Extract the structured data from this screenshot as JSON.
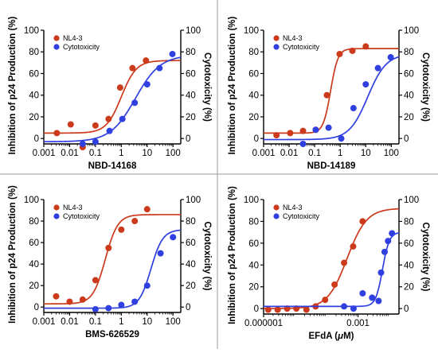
{
  "colors": {
    "nl43": "#cc3a1c",
    "cyto": "#2f3fe0",
    "divider": "#9a9a9a",
    "axis": "#000000"
  },
  "chart_data": [
    {
      "type": "scatter",
      "panel": "top-left",
      "xlabel": "NBD-14168",
      "ylabel_left": "Inhibition of p24 Production (%)",
      "ylabel_right": "Cytotoxicity (%)",
      "xscale": "log",
      "xlim": [
        0.001,
        200
      ],
      "xticks": [
        "0.001",
        "0.01",
        "0.1",
        "1",
        "10",
        "100"
      ],
      "ylim_left": [
        -5,
        100
      ],
      "ylim_right": [
        -5,
        100
      ],
      "yticks": [
        "0",
        "20",
        "40",
        "60",
        "80",
        "100"
      ],
      "legend_position": "top-left",
      "series": [
        {
          "name": "NL4-3",
          "color_key": "nl43",
          "points": [
            [
              0.0032,
              5
            ],
            [
              0.011,
              13
            ],
            [
              0.032,
              -8
            ],
            [
              0.1,
              12
            ],
            [
              0.32,
              18
            ],
            [
              0.9,
              47
            ],
            [
              2.7,
              65
            ],
            [
              9,
              72
            ]
          ],
          "fit": {
            "bottom": 5,
            "top": 72,
            "ec50": 1.0,
            "hill": 1.5
          }
        },
        {
          "name": "Cytotoxicity",
          "color_key": "cyto",
          "points": [
            [
              0.032,
              -5
            ],
            [
              0.1,
              -3
            ],
            [
              0.35,
              7
            ],
            [
              1.1,
              18
            ],
            [
              3.3,
              33
            ],
            [
              10,
              50
            ],
            [
              30,
              65
            ],
            [
              95,
              78
            ]
          ],
          "fit": {
            "bottom": -3,
            "top": 77,
            "ec50": 3.5,
            "hill": 0.9
          }
        }
      ]
    },
    {
      "type": "scatter",
      "panel": "top-right",
      "xlabel": "NBD-14189",
      "ylabel_left": "Inhibition of p24 Production (%)",
      "ylabel_right": "Cytotoxicity (%)",
      "xscale": "log",
      "xlim": [
        0.001,
        200
      ],
      "xticks": [
        "0.001",
        "0.01",
        "0.1",
        "1",
        "10",
        "100"
      ],
      "ylim_left": [
        -5,
        100
      ],
      "ylim_right": [
        -5,
        100
      ],
      "yticks": [
        "0",
        "20",
        "40",
        "60",
        "80",
        "100"
      ],
      "legend_position": "top-left",
      "series": [
        {
          "name": "NL4-3",
          "color_key": "nl43",
          "points": [
            [
              0.0032,
              3
            ],
            [
              0.011,
              5
            ],
            [
              0.035,
              7
            ],
            [
              0.11,
              8
            ],
            [
              0.3,
              40
            ],
            [
              0.95,
              78
            ],
            [
              3,
              81
            ],
            [
              10,
              85
            ]
          ],
          "fit": {
            "bottom": 5,
            "top": 83,
            "ec50": 0.42,
            "hill": 3.0
          }
        },
        {
          "name": "Cytotoxicity",
          "color_key": "cyto",
          "points": [
            [
              0.035,
              -5
            ],
            [
              0.11,
              8
            ],
            [
              0.35,
              10
            ],
            [
              1.1,
              0
            ],
            [
              3.3,
              28
            ],
            [
              10,
              50
            ],
            [
              30,
              65
            ],
            [
              95,
              75
            ]
          ],
          "fit": {
            "bottom": -1,
            "top": 78,
            "ec50": 12,
            "hill": 1.2
          }
        }
      ]
    },
    {
      "type": "scatter",
      "panel": "bottom-left",
      "xlabel": "BMS-626529",
      "ylabel_left": "Inhibition of p24 Production (%)",
      "ylabel_right": "Cytotoxicity (%)",
      "xscale": "log",
      "xlim": [
        0.001,
        200
      ],
      "xticks": [
        "0.001",
        "0.01",
        "0.1",
        "1",
        "10",
        "100"
      ],
      "ylim_left": [
        -5,
        100
      ],
      "ylim_right": [
        -5,
        100
      ],
      "yticks": [
        "0",
        "20",
        "40",
        "60",
        "80",
        "100"
      ],
      "legend_position": "top-left",
      "series": [
        {
          "name": "NL4-3",
          "color_key": "nl43",
          "points": [
            [
              0.003,
              10
            ],
            [
              0.01,
              5
            ],
            [
              0.032,
              7
            ],
            [
              0.1,
              25
            ],
            [
              0.32,
              55
            ],
            [
              1,
              72
            ],
            [
              3.3,
              80
            ],
            [
              10,
              91
            ]
          ],
          "fit": {
            "bottom": 3,
            "top": 86,
            "ec50": 0.24,
            "hill": 1.8
          }
        },
        {
          "name": "Cytotoxicity",
          "color_key": "cyto",
          "points": [
            [
              0.1,
              -2
            ],
            [
              0.32,
              -1
            ],
            [
              1,
              2
            ],
            [
              3.3,
              5
            ],
            [
              10,
              20
            ],
            [
              33,
              50
            ],
            [
              100,
              65
            ]
          ],
          "fit": {
            "bottom": -1,
            "top": 72,
            "ec50": 14,
            "hill": 1.9
          }
        }
      ]
    },
    {
      "type": "scatter",
      "panel": "bottom-right",
      "xlabel": "EFdA (μM)",
      "ylabel_left": "Inhibition of p24 Production (%)",
      "ylabel_right": "Cytotoxicity (%)",
      "xscale": "log",
      "xlim": [
        1e-06,
        0.02
      ],
      "xticks": [
        "0.000001",
        "0.001"
      ],
      "ylim_left": [
        -5,
        100
      ],
      "ylim_right": [
        -5,
        100
      ],
      "yticks": [
        "0",
        "20",
        "40",
        "60",
        "80",
        "100"
      ],
      "legend_position": "top-left",
      "series": [
        {
          "name": "NL4-3",
          "color_key": "nl43",
          "points": [
            [
              1.4e-06,
              -1
            ],
            [
              2.8e-06,
              -1
            ],
            [
              5.6e-06,
              0
            ],
            [
              1.1e-05,
              0
            ],
            [
              2.3e-05,
              -1
            ],
            [
              4.5e-05,
              2
            ],
            [
              9e-05,
              8
            ],
            [
              0.00018,
              22
            ],
            [
              0.00036,
              42
            ],
            [
              0.0007,
              57
            ],
            [
              0.0014,
              80
            ]
          ],
          "fit": {
            "bottom": 0,
            "top": 92,
            "ec50": 0.00045,
            "hill": 1.4
          }
        },
        {
          "name": "Cytotoxicity",
          "color_key": "cyto",
          "points": [
            [
              0.00036,
              2
            ],
            [
              0.00072,
              0
            ],
            [
              0.0014,
              14
            ],
            [
              0.0028,
              10
            ],
            [
              0.0045,
              7
            ],
            [
              0.0054,
              33
            ],
            [
              0.007,
              52
            ],
            [
              0.009,
              62
            ],
            [
              0.012,
              69
            ]
          ],
          "fit": {
            "bottom": 2,
            "top": 70,
            "ec50": 0.006,
            "hill": 4.0
          }
        }
      ]
    }
  ]
}
